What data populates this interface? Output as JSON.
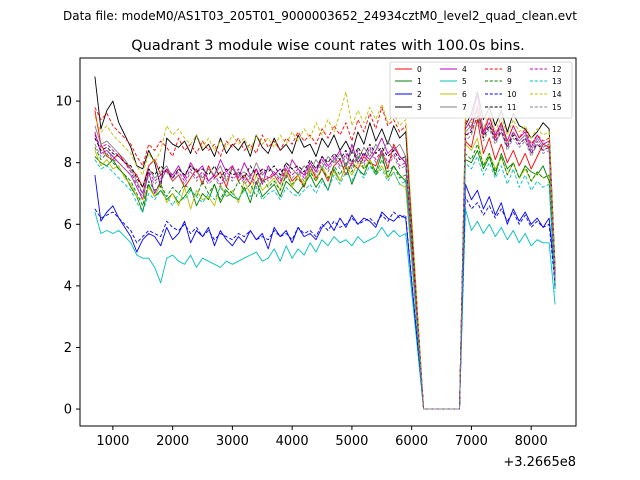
{
  "chart_data": {
    "type": "line",
    "suptitle": "Data file: modeM0/AS1T03_205T01_9000003652_24934cztM0_level2_quad_clean.evt",
    "title": "Quadrant 3 module wise count rates with 100.0s bins.",
    "xlabel": "",
    "ylabel": "",
    "x_offset_label": "+3.2665e8",
    "xlim": [
      450,
      8750
    ],
    "ylim": [
      -0.55,
      11.4
    ],
    "x_ticks": [
      1000,
      2000,
      3000,
      4000,
      5000,
      6000,
      7000,
      8000
    ],
    "y_ticks": [
      0,
      2,
      4,
      6,
      8,
      10
    ],
    "x_start": 700,
    "x_step": 100,
    "gap": [
      6200,
      6800
    ],
    "series": [
      {
        "name": "0",
        "color": "#ff0000",
        "dash": false,
        "before_gap": [
          9.7,
          8.6,
          8.2,
          8.1,
          8.3,
          8.0,
          7.8,
          7.6,
          7.2,
          7.9,
          8.1,
          7.6,
          7.8,
          7.4,
          7.6,
          7.2,
          7.5,
          7.8,
          7.3,
          7.9,
          7.5,
          7.7,
          7.2,
          7.9,
          7.4,
          7.6,
          7.3,
          7.8,
          7.4,
          7.5,
          7.6,
          7.3,
          7.8,
          7.4,
          7.6,
          7.2,
          7.9,
          7.5,
          7.8,
          7.4,
          7.9,
          8.1,
          7.6,
          8.0,
          7.8,
          8.2,
          8.0,
          7.9,
          8.4,
          7.8,
          8.6,
          8.2,
          8.0
        ],
        "after_gap": [
          8.7,
          8.5,
          9.4,
          8.3,
          8.8,
          8.1,
          8.6,
          8.0,
          8.4,
          7.9,
          8.3,
          7.8,
          8.2,
          8.6,
          8.5,
          4.4
        ]
      },
      {
        "name": "1",
        "color": "#008000",
        "dash": false,
        "before_gap": [
          8.2,
          8.0,
          7.9,
          8.1,
          7.8,
          7.6,
          7.2,
          6.9,
          6.4,
          7.3,
          6.9,
          7.1,
          6.8,
          7.0,
          6.7,
          6.9,
          7.2,
          6.6,
          7.0,
          6.8,
          7.3,
          6.7,
          7.1,
          6.9,
          6.8,
          7.2,
          6.7,
          7.4,
          6.9,
          7.1,
          7.3,
          6.9,
          7.4,
          7.2,
          7.0,
          7.3,
          7.6,
          7.2,
          7.5,
          7.1,
          7.8,
          7.4,
          7.9,
          7.3,
          7.8,
          7.6,
          8.1,
          7.7,
          8.3,
          7.5,
          7.9,
          7.6,
          7.4
        ],
        "after_gap": [
          8.1,
          8.0,
          8.4,
          7.8,
          8.2,
          7.6,
          8.3,
          7.8,
          8.0,
          7.5,
          7.9,
          7.7,
          7.6,
          7.9,
          7.4,
          3.9
        ]
      },
      {
        "name": "2",
        "color": "#0000ff",
        "dash": false,
        "before_gap": [
          7.6,
          6.1,
          6.4,
          6.6,
          6.2,
          5.9,
          5.6,
          5.1,
          5.5,
          5.7,
          5.6,
          5.3,
          5.9,
          5.5,
          5.7,
          6.1,
          5.4,
          5.8,
          5.6,
          5.9,
          5.3,
          5.8,
          5.5,
          5.3,
          5.6,
          5.4,
          5.8,
          5.5,
          5.7,
          5.2,
          5.9,
          5.6,
          5.8,
          5.4,
          5.9,
          5.6,
          5.7,
          5.5,
          5.9,
          6.1,
          5.8,
          6.2,
          5.9,
          6.3,
          6.0,
          6.2,
          6.1,
          5.9,
          6.4,
          6.2,
          6.1,
          6.3,
          6.2
        ],
        "after_gap": [
          7.3,
          6.8,
          7.1,
          6.5,
          6.9,
          6.3,
          6.7,
          6.0,
          6.5,
          6.1,
          6.4,
          6.0,
          6.2,
          5.9,
          6.2,
          4.2
        ]
      },
      {
        "name": "3",
        "color": "#000000",
        "dash": false,
        "before_gap": [
          10.8,
          9.1,
          9.7,
          10.0,
          9.3,
          8.9,
          8.5,
          7.9,
          7.8,
          8.4,
          8.0,
          7.2,
          8.8,
          8.6,
          8.5,
          8.7,
          8.3,
          8.9,
          8.4,
          8.6,
          8.2,
          8.8,
          8.3,
          8.6,
          8.4,
          8.7,
          8.2,
          8.9,
          8.5,
          8.3,
          8.8,
          8.4,
          8.6,
          8.3,
          8.9,
          8.5,
          8.6,
          8.2,
          8.8,
          8.5,
          8.9,
          8.4,
          8.7,
          8.3,
          9.0,
          8.6,
          9.3,
          8.7,
          9.1,
          8.6,
          9.2,
          8.8,
          9.0
        ],
        "after_gap": [
          9.2,
          9.6,
          10.3,
          9.4,
          9.8,
          9.2,
          9.7,
          9.0,
          9.6,
          9.2,
          9.1,
          8.8,
          9.0,
          9.3,
          9.1,
          4.6
        ]
      },
      {
        "name": "4",
        "color": "#bf00bf",
        "dash": false,
        "before_gap": [
          9.0,
          8.3,
          8.4,
          8.2,
          8.0,
          7.8,
          7.6,
          7.2,
          6.8,
          7.7,
          7.0,
          7.4,
          7.8,
          7.6,
          7.9,
          7.5,
          8.0,
          7.7,
          7.9,
          7.4,
          7.6,
          8.1,
          7.7,
          7.9,
          7.5,
          8.0,
          7.6,
          7.8,
          7.3,
          7.9,
          7.6,
          7.8,
          7.5,
          8.1,
          7.8,
          7.6,
          8.0,
          7.7,
          8.2,
          7.9,
          8.1,
          8.4,
          7.8,
          8.6,
          8.0,
          8.3,
          8.1,
          8.4,
          8.8,
          8.3,
          8.5,
          8.2,
          8.0
        ],
        "after_gap": [
          9.1,
          9.4,
          10.2,
          9.0,
          9.5,
          8.9,
          9.3,
          8.7,
          9.2,
          8.8,
          9.0,
          8.5,
          8.9,
          8.6,
          8.7,
          4.5
        ]
      },
      {
        "name": "5",
        "color": "#00bfbf",
        "dash": false,
        "before_gap": [
          6.4,
          5.7,
          5.8,
          5.7,
          5.8,
          5.6,
          5.4,
          5.0,
          4.9,
          4.9,
          4.6,
          4.1,
          4.9,
          5.0,
          4.8,
          4.7,
          5.0,
          4.6,
          4.9,
          4.8,
          4.7,
          4.6,
          4.8,
          4.7,
          4.8,
          4.9,
          5.0,
          5.1,
          4.8,
          4.9,
          5.2,
          4.8,
          5.3,
          4.9,
          5.2,
          5.0,
          5.4,
          5.1,
          5.5,
          5.3,
          5.6,
          5.4,
          5.5,
          5.3,
          5.6,
          5.4,
          5.5,
          5.6,
          5.9,
          5.6,
          5.8,
          5.6,
          5.7
        ],
        "after_gap": [
          6.5,
          5.8,
          6.1,
          5.7,
          6.0,
          5.6,
          5.9,
          5.5,
          5.8,
          5.4,
          5.7,
          5.3,
          5.5,
          5.4,
          5.4,
          3.4
        ]
      },
      {
        "name": "6",
        "color": "#bfbf00",
        "dash": false,
        "before_gap": [
          8.4,
          7.9,
          8.1,
          7.8,
          7.9,
          7.5,
          7.3,
          6.9,
          6.8,
          7.2,
          6.9,
          7.3,
          6.7,
          7.0,
          6.6,
          7.2,
          6.5,
          7.1,
          6.8,
          6.9,
          6.6,
          7.3,
          6.9,
          7.1,
          6.7,
          7.4,
          7.0,
          7.6,
          7.1,
          7.3,
          7.5,
          7.1,
          7.7,
          7.2,
          7.6,
          7.3,
          7.8,
          7.4,
          7.9,
          7.5,
          7.7,
          7.4,
          7.9,
          7.6,
          8.0,
          7.8,
          8.1,
          7.6,
          7.9,
          7.5,
          7.7,
          7.3,
          7.2
        ],
        "after_gap": [
          8.6,
          8.4,
          8.8,
          7.9,
          8.3,
          7.8,
          8.2,
          7.6,
          8.0,
          7.5,
          7.8,
          7.4,
          7.7,
          7.5,
          7.6,
          4.1
        ]
      },
      {
        "name": "7",
        "color": "#808080",
        "dash": false,
        "before_gap": [
          9.2,
          8.6,
          8.7,
          8.5,
          8.3,
          8.1,
          7.8,
          7.4,
          7.0,
          7.8,
          7.5,
          7.7,
          7.9,
          7.5,
          7.8,
          7.6,
          7.9,
          7.7,
          7.5,
          7.8,
          7.6,
          7.9,
          7.4,
          7.8,
          7.6,
          7.7,
          7.5,
          8.0,
          7.6,
          7.8,
          7.7,
          7.5,
          8.0,
          7.8,
          7.6,
          7.9,
          7.7,
          8.1,
          7.8,
          8.2,
          8.0,
          8.3,
          7.9,
          8.4,
          8.1,
          8.5,
          8.2,
          8.6,
          8.3,
          8.7,
          8.4,
          8.6,
          8.2
        ],
        "after_gap": [
          9.0,
          9.2,
          9.7,
          8.9,
          9.3,
          8.8,
          9.2,
          8.6,
          9.0,
          8.7,
          8.9,
          8.4,
          8.8,
          8.5,
          8.6,
          4.3
        ]
      },
      {
        "name": "8",
        "color": "#ff0000",
        "dash": true,
        "before_gap": [
          9.8,
          9.4,
          9.6,
          9.2,
          9.0,
          8.8,
          8.6,
          8.2,
          7.9,
          8.6,
          8.4,
          8.7,
          8.5,
          8.2,
          8.8,
          8.4,
          8.6,
          8.3,
          8.7,
          8.4,
          8.6,
          8.2,
          8.7,
          8.5,
          8.8,
          8.4,
          8.6,
          8.3,
          8.9,
          8.5,
          8.7,
          8.4,
          8.8,
          8.6,
          9.0,
          8.7,
          8.9,
          8.6,
          9.1,
          8.8,
          9.2,
          8.9,
          9.3,
          8.7,
          9.4,
          9.0,
          9.6,
          9.1,
          9.8,
          9.2,
          9.4,
          9.0,
          9.2
        ],
        "after_gap": [
          9.4,
          9.1,
          9.8,
          8.9,
          9.5,
          8.8,
          9.3,
          8.7,
          9.2,
          8.8,
          9.1,
          8.6,
          8.9,
          8.7,
          8.8,
          4.5
        ]
      },
      {
        "name": "9",
        "color": "#008000",
        "dash": true,
        "before_gap": [
          8.5,
          8.1,
          8.3,
          8.0,
          7.8,
          7.6,
          7.4,
          7.0,
          6.6,
          7.4,
          7.1,
          7.3,
          6.9,
          7.2,
          7.0,
          7.3,
          7.1,
          6.9,
          7.4,
          7.0,
          7.3,
          6.8,
          7.2,
          7.0,
          7.4,
          7.1,
          7.3,
          6.9,
          7.5,
          7.2,
          7.4,
          7.1,
          7.6,
          7.3,
          7.5,
          7.2,
          7.7,
          7.4,
          7.8,
          7.5,
          7.9,
          7.6,
          8.0,
          7.7,
          8.2,
          7.8,
          8.0,
          7.6,
          8.1,
          7.7,
          7.9,
          7.5,
          7.6
        ],
        "after_gap": [
          8.3,
          8.1,
          8.6,
          7.9,
          8.3,
          7.7,
          8.2,
          7.6,
          8.0,
          7.5,
          7.9,
          7.4,
          7.7,
          7.5,
          7.6,
          4.0
        ]
      },
      {
        "name": "10",
        "color": "#0000ff",
        "dash": true,
        "before_gap": [
          6.5,
          6.2,
          6.3,
          6.4,
          6.2,
          6.0,
          5.8,
          5.4,
          5.6,
          5.8,
          5.7,
          5.6,
          6.1,
          5.9,
          5.8,
          6.0,
          5.7,
          5.9,
          5.6,
          5.8,
          5.5,
          5.7,
          5.6,
          5.5,
          5.7,
          5.6,
          5.8,
          5.5,
          5.6,
          5.5,
          5.8,
          5.6,
          5.7,
          5.5,
          5.9,
          5.7,
          5.8,
          5.6,
          6.0,
          5.8,
          6.1,
          5.9,
          6.0,
          6.2,
          6.0,
          6.1,
          6.2,
          6.0,
          6.3,
          6.1,
          6.4,
          6.2,
          6.3
        ],
        "after_gap": [
          6.9,
          6.5,
          6.7,
          6.3,
          6.6,
          6.2,
          6.5,
          6.1,
          6.4,
          6.0,
          6.3,
          5.9,
          6.1,
          5.9,
          6.0,
          4.0
        ]
      },
      {
        "name": "11",
        "color": "#000000",
        "dash": true,
        "before_gap": [
          8.8,
          8.4,
          8.5,
          8.3,
          8.2,
          8.0,
          7.9,
          7.5,
          7.2,
          7.8,
          7.6,
          7.9,
          7.7,
          7.5,
          7.8,
          7.6,
          7.9,
          7.7,
          7.8,
          7.6,
          7.9,
          7.5,
          7.8,
          7.6,
          7.7,
          7.5,
          7.9,
          7.6,
          7.8,
          7.7,
          7.9,
          7.6,
          8.0,
          7.8,
          7.9,
          7.7,
          8.1,
          7.8,
          8.2,
          8.0,
          8.3,
          8.1,
          8.4,
          8.0,
          8.5,
          8.2,
          8.6,
          8.3,
          8.5,
          8.2,
          8.4,
          8.1,
          8.2
        ],
        "after_gap": [
          8.9,
          9.0,
          9.5,
          8.8,
          9.2,
          8.7,
          9.0,
          8.5,
          8.9,
          8.6,
          8.8,
          8.3,
          8.6,
          8.4,
          8.5,
          4.3
        ]
      },
      {
        "name": "12",
        "color": "#bf00bf",
        "dash": true,
        "before_gap": [
          8.9,
          8.5,
          8.6,
          8.4,
          8.2,
          8.0,
          7.7,
          7.3,
          7.0,
          7.7,
          7.4,
          7.6,
          7.8,
          7.5,
          7.7,
          7.4,
          7.8,
          7.5,
          7.7,
          7.4,
          7.6,
          7.3,
          7.7,
          7.5,
          7.8,
          7.4,
          7.6,
          7.3,
          7.8,
          7.5,
          7.7,
          7.4,
          7.9,
          7.6,
          7.8,
          7.5,
          8.0,
          7.7,
          8.1,
          7.8,
          8.2,
          7.9,
          8.3,
          7.9,
          8.4,
          8.0,
          8.5,
          8.1,
          8.4,
          8.0,
          8.3,
          7.9,
          8.0
        ],
        "after_gap": [
          8.8,
          9.1,
          9.9,
          8.9,
          9.3,
          8.7,
          9.1,
          8.5,
          9.0,
          8.6,
          8.8,
          8.3,
          8.7,
          8.4,
          8.5,
          4.2
        ]
      },
      {
        "name": "13",
        "color": "#00bfbf",
        "dash": true,
        "before_gap": [
          8.1,
          7.8,
          7.9,
          7.7,
          7.5,
          7.3,
          7.1,
          6.7,
          6.4,
          7.0,
          6.8,
          7.1,
          6.9,
          6.6,
          7.0,
          6.8,
          7.1,
          6.9,
          6.7,
          7.0,
          6.8,
          7.2,
          6.9,
          7.0,
          6.8,
          7.1,
          6.9,
          7.2,
          6.8,
          7.0,
          7.1,
          6.8,
          7.2,
          7.0,
          6.9,
          7.1,
          7.3,
          7.0,
          7.4,
          7.1,
          7.6,
          7.3,
          7.7,
          7.4,
          7.8,
          7.5,
          7.9,
          7.6,
          7.8,
          7.4,
          7.7,
          7.3,
          7.4
        ],
        "after_gap": [
          8.0,
          7.8,
          8.2,
          7.6,
          8.0,
          7.5,
          7.9,
          7.3,
          7.8,
          7.2,
          7.6,
          7.1,
          7.4,
          7.2,
          7.3,
          3.8
        ]
      },
      {
        "name": "14",
        "color": "#bfbf00",
        "dash": true,
        "before_gap": [
          9.5,
          9.0,
          9.2,
          8.9,
          8.7,
          8.5,
          8.3,
          7.9,
          7.6,
          8.3,
          8.0,
          8.4,
          9.2,
          8.9,
          9.1,
          8.8,
          8.6,
          8.9,
          8.5,
          8.8,
          8.4,
          8.7,
          8.5,
          8.9,
          8.6,
          8.8,
          8.4,
          8.9,
          8.6,
          8.8,
          8.5,
          8.9,
          8.6,
          9.0,
          8.7,
          9.1,
          8.8,
          9.3,
          8.9,
          9.4,
          9.0,
          9.6,
          10.3,
          9.2,
          9.7,
          9.3,
          9.8,
          9.4,
          9.9,
          9.3,
          9.6,
          9.2,
          9.4
        ],
        "after_gap": [
          9.6,
          9.3,
          9.9,
          9.1,
          9.6,
          9.0,
          9.5,
          8.9,
          9.4,
          9.0,
          9.2,
          8.8,
          9.1,
          8.9,
          9.0,
          4.6
        ]
      },
      {
        "name": "15",
        "color": "#808080",
        "dash": true,
        "before_gap": [
          8.6,
          8.2,
          8.4,
          8.1,
          8.0,
          7.8,
          7.6,
          7.2,
          6.9,
          7.6,
          7.3,
          7.5,
          7.7,
          7.4,
          7.6,
          7.3,
          7.7,
          7.4,
          7.6,
          7.3,
          7.5,
          7.2,
          7.6,
          7.4,
          7.7,
          7.3,
          7.5,
          7.2,
          7.7,
          7.4,
          7.6,
          7.3,
          7.8,
          7.5,
          7.7,
          7.4,
          7.9,
          7.6,
          8.0,
          7.7,
          8.1,
          7.8,
          8.2,
          7.8,
          8.3,
          7.9,
          8.4,
          8.0,
          8.3,
          7.9,
          8.2,
          7.8,
          7.9
        ],
        "after_gap": [
          8.7,
          8.9,
          9.6,
          8.7,
          9.1,
          8.6,
          9.0,
          8.4,
          8.8,
          8.5,
          8.7,
          8.2,
          8.6,
          8.3,
          8.4,
          4.2
        ]
      }
    ]
  }
}
